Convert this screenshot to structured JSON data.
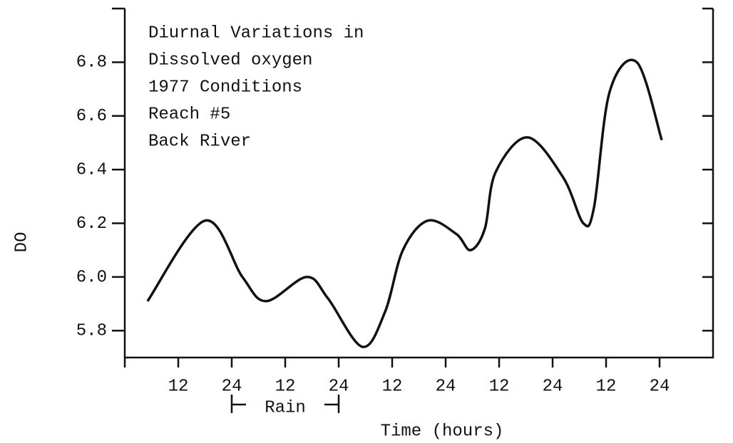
{
  "chart_data": {
    "type": "line",
    "title_lines": [
      "Diurnal Variations in",
      "Dissolved oxygen",
      "1977 Conditions",
      "Reach #5",
      "Back River"
    ],
    "xlabel": "Time (hours)",
    "ylabel": "DO",
    "x": [
      5.1,
      18,
      26.4,
      31.7,
      40.8,
      45.6,
      53.3,
      58.4,
      62.4,
      68,
      74.4,
      77.6,
      80.8,
      83.2,
      90.4,
      98.4,
      102.9,
      105.3,
      108.8,
      114.9,
      120.5
    ],
    "series": [
      {
        "name": "DO",
        "color": "#111111",
        "values": [
          5.91,
          6.21,
          6.0,
          5.91,
          6.0,
          5.92,
          5.74,
          5.87,
          6.1,
          6.21,
          6.16,
          6.1,
          6.18,
          6.39,
          6.52,
          6.37,
          6.2,
          6.26,
          6.69,
          6.8,
          6.51
        ]
      }
    ],
    "xlim": [
      0,
      132
    ],
    "ylim": [
      5.7,
      7.0
    ],
    "xticks": [
      {
        "value": 12,
        "label": "12"
      },
      {
        "value": 24,
        "label": "24"
      },
      {
        "value": 36,
        "label": "12"
      },
      {
        "value": 48,
        "label": "24"
      },
      {
        "value": 60,
        "label": "12"
      },
      {
        "value": 72,
        "label": "24"
      },
      {
        "value": 84,
        "label": "12"
      },
      {
        "value": 96,
        "label": "24"
      },
      {
        "value": 108,
        "label": "12"
      },
      {
        "value": 120,
        "label": "24"
      }
    ],
    "yticks": [
      5.8,
      {
        "value": 6,
        "label": "6.0"
      },
      6.2,
      6.4,
      6.6,
      6.8
    ],
    "annotation": {
      "text": "Rain",
      "x": [
        24,
        48
      ]
    }
  }
}
